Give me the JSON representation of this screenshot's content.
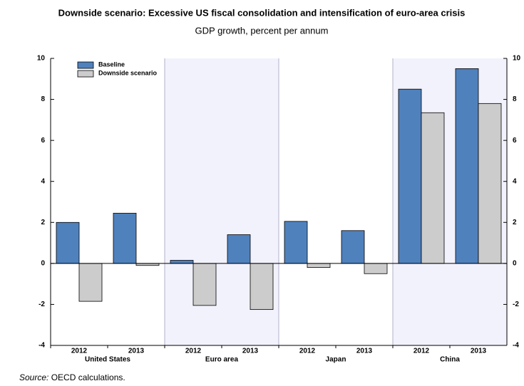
{
  "chart_data": {
    "type": "grouped-bar",
    "title": "Downside scenario: Excessive US fiscal consolidation and intensification of euro-area crisis",
    "subtitle": "GDP growth, percent per annum",
    "categories": [
      "2012",
      "2013",
      "2012",
      "2013",
      "2012",
      "2013",
      "2012",
      "2013"
    ],
    "groups": [
      "United States",
      "Euro area",
      "Japan",
      "China"
    ],
    "shaded_groups": [
      false,
      true,
      false,
      true
    ],
    "shade_color": "#f2f2fd",
    "series": [
      {
        "name": "Baseline",
        "color": "#4f81bd",
        "values": [
          2.0,
          2.45,
          0.15,
          1.4,
          2.05,
          1.6,
          8.5,
          9.5
        ]
      },
      {
        "name": "Downside scenario",
        "color": "#cccccc",
        "values": [
          -1.85,
          -0.1,
          -2.05,
          -2.25,
          -0.2,
          -0.5,
          7.35,
          7.8
        ]
      }
    ],
    "ylim": [
      -4,
      10
    ],
    "yticks": [
      -4,
      -2,
      0,
      2,
      4,
      6,
      8,
      10
    ],
    "y2lim": [
      -4,
      10
    ],
    "y2ticks": [
      -4,
      -2,
      0,
      2,
      4,
      6,
      8,
      10
    ],
    "legend": "upper-left",
    "source_label": "Source:",
    "source_text": "OECD calculations."
  }
}
